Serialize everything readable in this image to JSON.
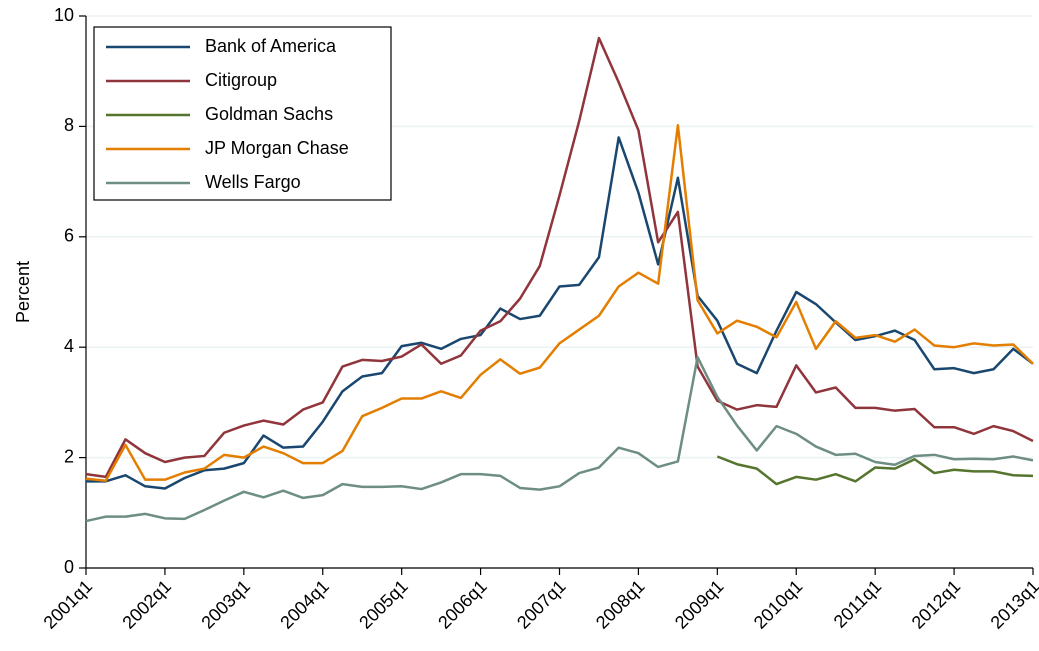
{
  "chart_data": {
    "type": "line",
    "y_label": "Percent",
    "categories": [
      "2001q1",
      null,
      null,
      null,
      "2002q1",
      null,
      null,
      null,
      "2003q1",
      null,
      null,
      null,
      "2004q1",
      null,
      null,
      null,
      "2005q1",
      null,
      null,
      null,
      "2006q1",
      null,
      null,
      null,
      "2007q1",
      null,
      null,
      null,
      "2008q1",
      null,
      null,
      null,
      "2009q1",
      null,
      null,
      null,
      "2010q1",
      null,
      null,
      null,
      "2011q1",
      null,
      null,
      null,
      "2012q1",
      null,
      null,
      null,
      "2013q1"
    ],
    "series": [
      {
        "name": "Bank of America",
        "color": "#1a476f",
        "values": [
          1.57,
          1.57,
          1.68,
          1.48,
          1.44,
          1.63,
          1.77,
          1.8,
          1.9,
          2.4,
          2.18,
          2.2,
          2.65,
          3.2,
          3.47,
          3.53,
          4.02,
          4.08,
          3.97,
          4.15,
          4.22,
          4.7,
          4.51,
          4.57,
          5.1,
          5.13,
          5.63,
          7.8,
          6.8,
          5.5,
          7.07,
          4.93,
          4.48,
          3.7,
          3.53,
          4.3,
          5.0,
          4.78,
          4.45,
          4.13,
          4.2,
          4.3,
          4.13,
          3.6,
          3.62,
          3.53,
          3.6,
          3.97,
          3.7
        ]
      },
      {
        "name": "Citigroup",
        "color": "#90353b",
        "values": [
          1.7,
          1.65,
          2.33,
          2.08,
          1.92,
          2.0,
          2.03,
          2.45,
          2.58,
          2.67,
          2.6,
          2.87,
          3.0,
          3.65,
          3.77,
          3.75,
          3.83,
          4.05,
          3.7,
          3.85,
          4.3,
          4.47,
          4.88,
          5.47,
          6.75,
          8.1,
          9.6,
          8.8,
          7.93,
          5.9,
          6.45,
          3.65,
          3.03,
          2.87,
          2.95,
          2.92,
          3.67,
          3.18,
          3.27,
          2.9,
          2.9,
          2.85,
          2.88,
          2.55,
          2.55,
          2.43,
          2.57,
          2.48,
          2.3
        ]
      },
      {
        "name": "Goldman Sachs",
        "color": "#55752f",
        "values": [
          null,
          null,
          null,
          null,
          null,
          null,
          null,
          null,
          null,
          null,
          null,
          null,
          null,
          null,
          null,
          null,
          null,
          null,
          null,
          null,
          null,
          null,
          null,
          null,
          null,
          null,
          null,
          null,
          null,
          null,
          null,
          null,
          2.02,
          1.88,
          1.8,
          1.52,
          1.65,
          1.6,
          1.7,
          1.57,
          1.82,
          1.8,
          1.97,
          1.72,
          1.78,
          1.75,
          1.75,
          1.68,
          1.67
        ]
      },
      {
        "name": "JP Morgan Chase",
        "color": "#e37e00",
        "values": [
          1.62,
          1.58,
          2.23,
          1.6,
          1.6,
          1.73,
          1.8,
          2.05,
          2.0,
          2.2,
          2.08,
          1.9,
          1.9,
          2.12,
          2.75,
          2.9,
          3.07,
          3.07,
          3.2,
          3.08,
          3.5,
          3.78,
          3.52,
          3.63,
          4.07,
          4.32,
          4.57,
          5.1,
          5.35,
          5.15,
          8.02,
          4.85,
          4.25,
          4.48,
          4.37,
          4.18,
          4.82,
          3.97,
          4.47,
          4.17,
          4.22,
          4.1,
          4.32,
          4.03,
          4.0,
          4.07,
          4.03,
          4.05,
          3.7
        ]
      },
      {
        "name": "Wells Fargo",
        "color": "#6e8e84",
        "values": [
          0.85,
          0.93,
          0.93,
          0.98,
          0.9,
          0.89,
          1.05,
          1.22,
          1.38,
          1.28,
          1.4,
          1.27,
          1.32,
          1.52,
          1.47,
          1.47,
          1.48,
          1.43,
          1.55,
          1.7,
          1.7,
          1.67,
          1.45,
          1.42,
          1.48,
          1.72,
          1.82,
          2.18,
          2.08,
          1.83,
          1.93,
          3.82,
          3.1,
          2.58,
          2.13,
          2.57,
          2.43,
          2.2,
          2.05,
          2.07,
          1.92,
          1.87,
          2.03,
          2.05,
          1.97,
          1.98,
          1.97,
          2.02,
          1.95
        ]
      }
    ],
    "ylim": [
      0,
      10
    ],
    "yticks": [
      0,
      2,
      4,
      6,
      8,
      10
    ],
    "grid": true,
    "legend": "top-left"
  }
}
